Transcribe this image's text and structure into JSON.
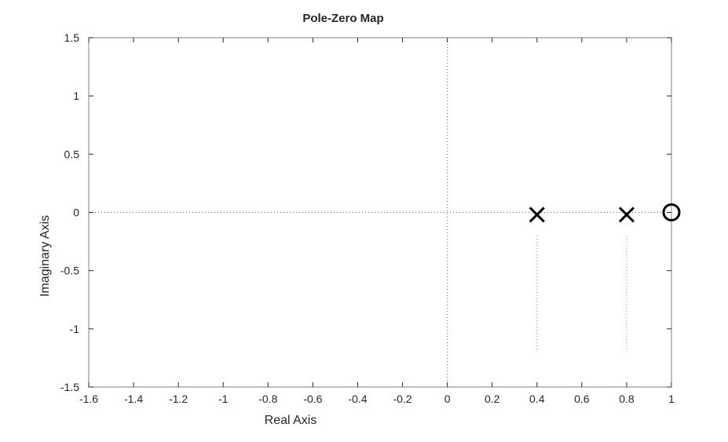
{
  "chart_data": {
    "type": "scatter",
    "title": "Pole-Zero Map",
    "xlabel": "Real Axis",
    "ylabel": "Imaginary Axis",
    "xlim": [
      -1.6,
      1
    ],
    "ylim": [
      -1.5,
      1.5
    ],
    "xticks": [
      "-1.6",
      "-1.4",
      "-1.2",
      "-1",
      "-0.8",
      "-0.6",
      "-0.4",
      "-0.2",
      "0",
      "0.2",
      "0.4",
      "0.6",
      "0.8",
      "1"
    ],
    "yticks": [
      "1.5",
      "1",
      "0.5",
      "0",
      "-0.5",
      "-1",
      "-1.5"
    ],
    "grid": false,
    "poles": [
      {
        "x": 0.4,
        "y": -0.02
      },
      {
        "x": 0.8,
        "y": -0.02
      }
    ],
    "zeros": [
      {
        "x": 1.0,
        "y": 0.0
      }
    ],
    "marker_color": "#000000",
    "axis_color": "#262626"
  }
}
